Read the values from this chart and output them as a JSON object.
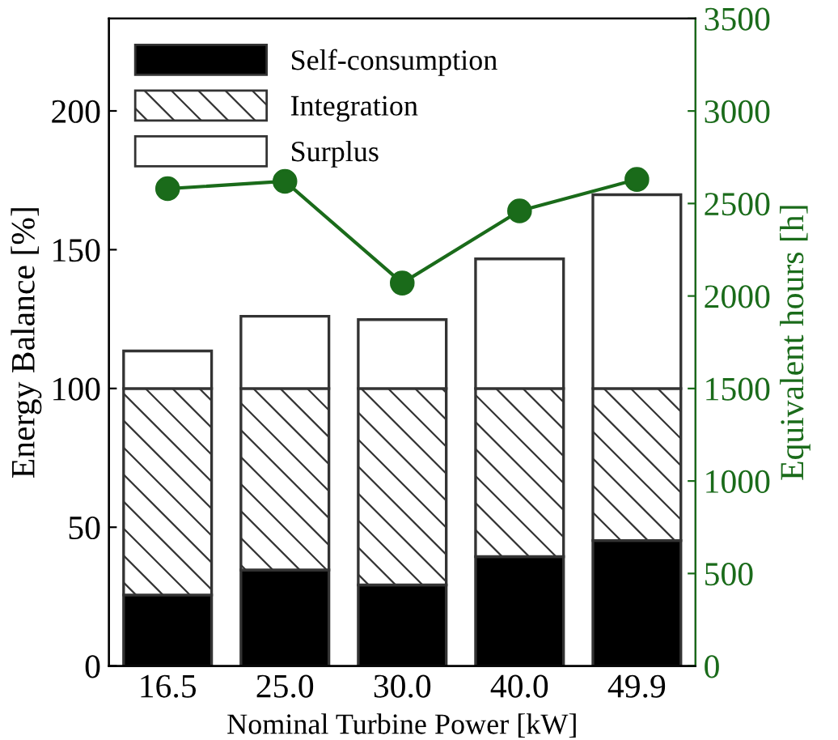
{
  "chart_data": {
    "type": "bar",
    "stacked": true,
    "xlabel": "Nominal Turbine Power [kW]",
    "ylabel": "Energy Balance [%]",
    "y2label": "Equivalent hours [h]",
    "categories": [
      "16.5",
      "25.0",
      "30.0",
      "40.0",
      "49.9"
    ],
    "series": [
      {
        "name": "Self-consumption",
        "color": "#000000",
        "values": [
          25.6,
          34.6,
          29.2,
          39.4,
          45.2
        ]
      },
      {
        "name": "Integration",
        "color": "#333333",
        "values": [
          74.4,
          65.4,
          70.8,
          60.6,
          54.8
        ]
      },
      {
        "name": "Surplus",
        "color": "#ffffff",
        "values": [
          13.5,
          26,
          24.8,
          46.7,
          69.8
        ]
      },
      {
        "type": "line",
        "axis": "y2",
        "color": "#1a6b1a",
        "marker": "circle",
        "values": [
          2580,
          2620,
          2070,
          2460,
          2630
        ]
      }
    ],
    "ylim": [
      0,
      233.3
    ],
    "yticks": [
      0,
      50,
      100,
      150,
      200
    ],
    "y2lim": [
      0,
      3500
    ],
    "y2ticks": [
      0,
      500,
      1000,
      1500,
      2000,
      2500,
      3000,
      3500
    ],
    "legend": "top left",
    "grid": false
  }
}
